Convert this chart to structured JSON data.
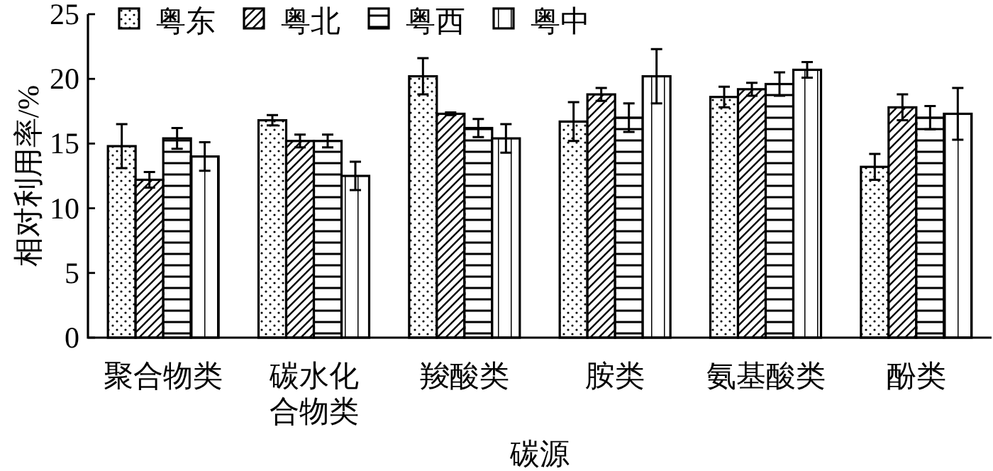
{
  "chart_data": {
    "type": "bar",
    "xlabel": "碳源",
    "ylabel": "相对利用率/%",
    "categories": [
      "聚合物类",
      "碳水化合物类",
      "羧酸类",
      "胺类",
      "氨基酸类",
      "酚类"
    ],
    "series": [
      {
        "name": "粤东",
        "color": "#000000",
        "values": [
          14.8,
          16.8,
          20.2,
          16.7,
          18.6,
          13.2
        ],
        "errors": [
          1.7,
          0.4,
          1.4,
          1.5,
          0.8,
          1.0
        ]
      },
      {
        "name": "粤北",
        "color": "#000000",
        "values": [
          12.2,
          15.2,
          17.3,
          18.8,
          19.2,
          17.8
        ],
        "errors": [
          0.6,
          0.5,
          0.1,
          0.5,
          0.5,
          1.0
        ]
      },
      {
        "name": "粤西",
        "color": "#000000",
        "values": [
          15.4,
          15.2,
          16.2,
          17.0,
          19.6,
          17.0
        ],
        "errors": [
          0.8,
          0.5,
          0.7,
          1.1,
          0.9,
          0.9
        ]
      },
      {
        "name": "粤中",
        "color": "#000000",
        "values": [
          14.0,
          12.5,
          15.4,
          20.2,
          20.7,
          17.3
        ],
        "errors": [
          1.1,
          1.1,
          1.1,
          2.1,
          0.6,
          2.0
        ]
      }
    ],
    "ylim": [
      0,
      25
    ],
    "yticks": [
      0,
      5,
      10,
      15,
      20,
      25
    ],
    "legend": "top left"
  }
}
